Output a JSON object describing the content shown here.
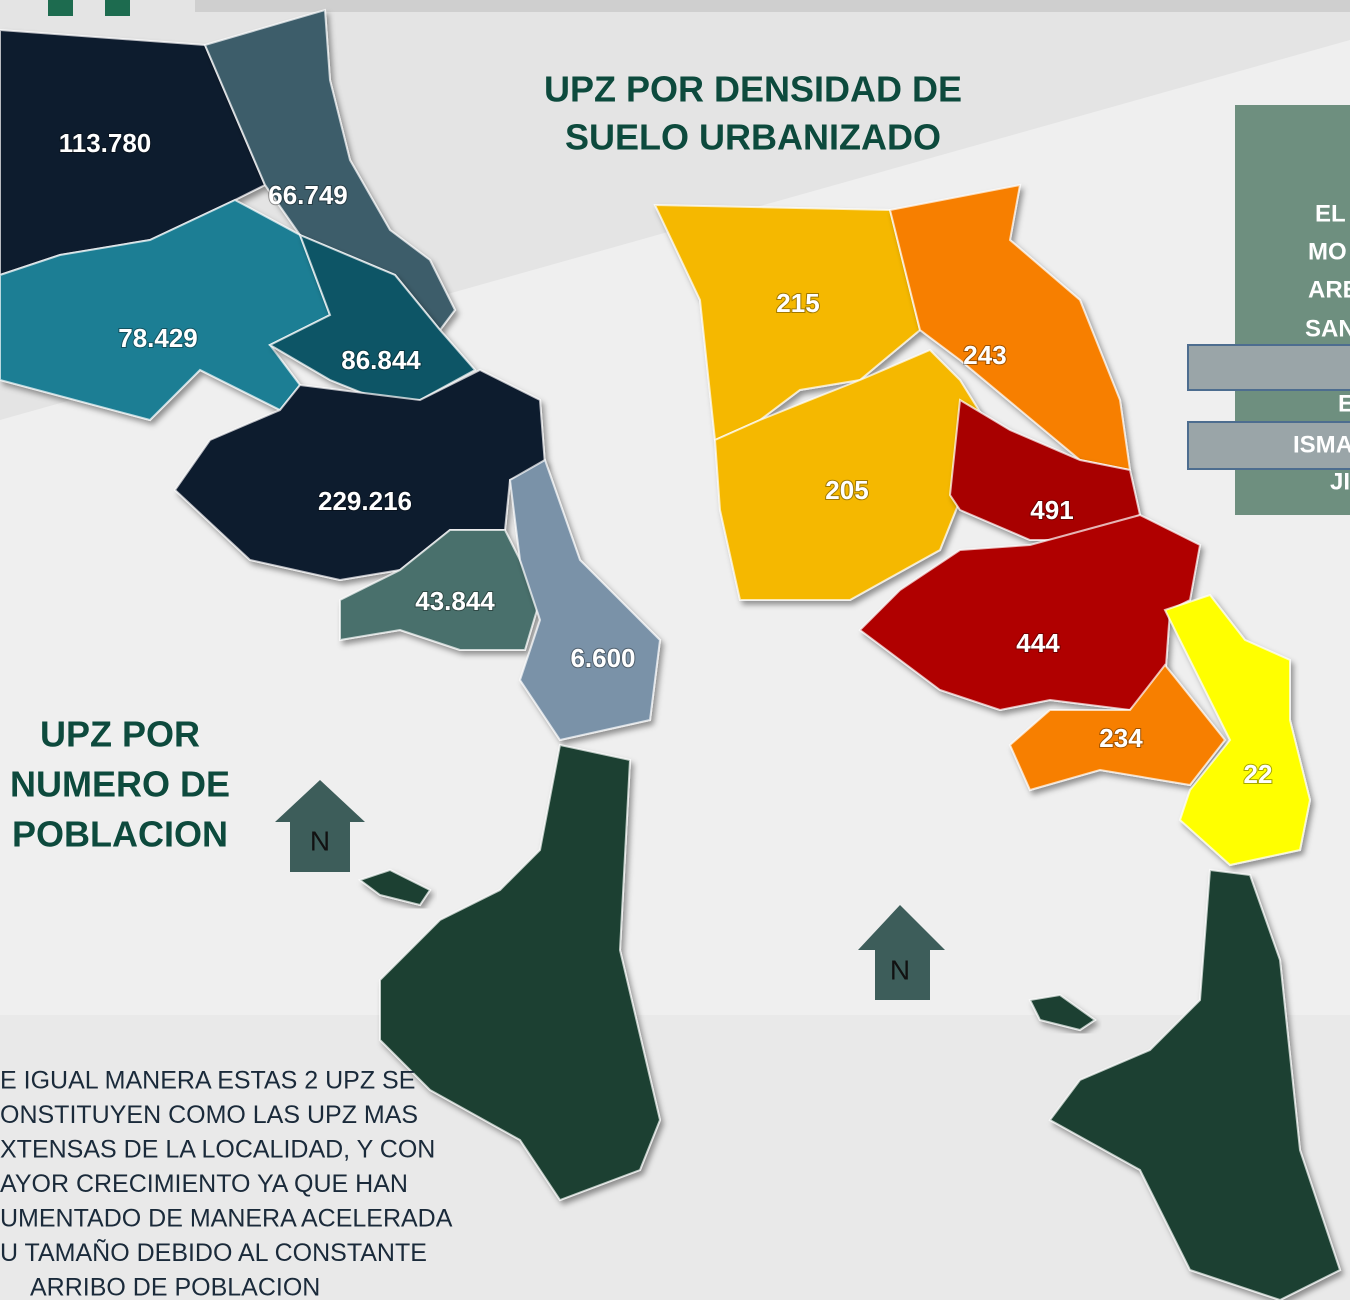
{
  "title_density": [
    "UPZ POR DENSIDAD DE",
    "SUELO URBANIZADO"
  ],
  "title_population": [
    "UPZ POR",
    "NUMERO DE",
    "POBLACION"
  ],
  "north_labels": [
    "N",
    "N"
  ],
  "left_map": {
    "regions": [
      "113.780",
      "66.749",
      "78.429",
      "86.844",
      "229.216",
      "43.844",
      "6.600"
    ]
  },
  "right_map": {
    "regions": [
      "215",
      "243",
      "205",
      "491",
      "444",
      "234",
      "22"
    ]
  },
  "side_panel": {
    "lines": [
      "EL",
      "MO",
      "ARE",
      "SAN",
      "E",
      "ISMA",
      "JI"
    ]
  },
  "note": {
    "lines": [
      "E IGUAL MANERA ESTAS 2 UPZ SE",
      "ONSTITUYEN COMO LAS UPZ MAS",
      "XTENSAS DE LA LOCALIDAD, Y CON",
      "AYOR CRECIMIENTO YA QUE HAN",
      "UMENTADO DE MANERA ACELERADA",
      "U TAMAÑO DEBIDO AL CONSTANTE",
      "ARRIBO DE POBLACION"
    ]
  }
}
